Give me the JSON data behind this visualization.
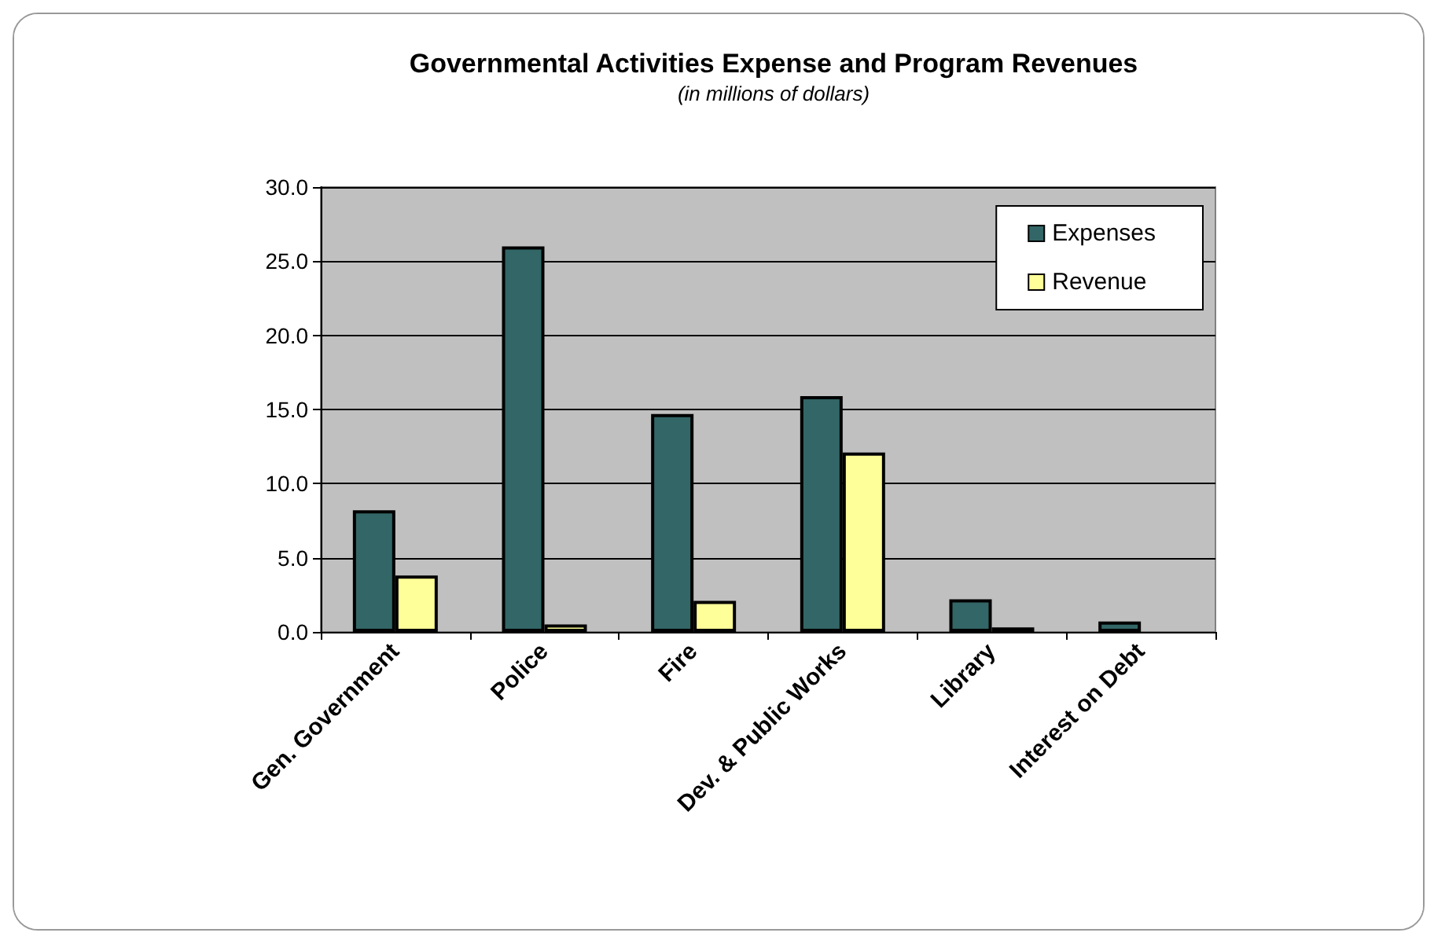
{
  "chart_data": {
    "type": "bar",
    "title": "Governmental Activities Expense and Program Revenues",
    "subtitle": "(in millions of dollars)",
    "categories": [
      "Gen. Government",
      "Police",
      "Fire",
      "Dev. & Public Works",
      "Library",
      "Interest on Debt"
    ],
    "series": [
      {
        "name": "Expenses",
        "color": "#336666",
        "values": [
          8.2,
          26.0,
          14.7,
          15.9,
          2.2,
          0.7
        ]
      },
      {
        "name": "Revenue",
        "color": "#ffff99",
        "values": [
          3.8,
          0.5,
          2.1,
          12.1,
          0.3,
          null
        ]
      }
    ],
    "ylim": [
      0,
      30
    ],
    "yticks": [
      {
        "value": 0,
        "label": "0.0"
      },
      {
        "value": 5,
        "label": "5.0"
      },
      {
        "value": 10,
        "label": "10.0"
      },
      {
        "value": 15,
        "label": "15.0"
      },
      {
        "value": 20,
        "label": "20.0"
      },
      {
        "value": 25,
        "label": "25.0"
      },
      {
        "value": 30,
        "label": "30.0"
      }
    ],
    "grid": "y",
    "legend": "top right"
  }
}
